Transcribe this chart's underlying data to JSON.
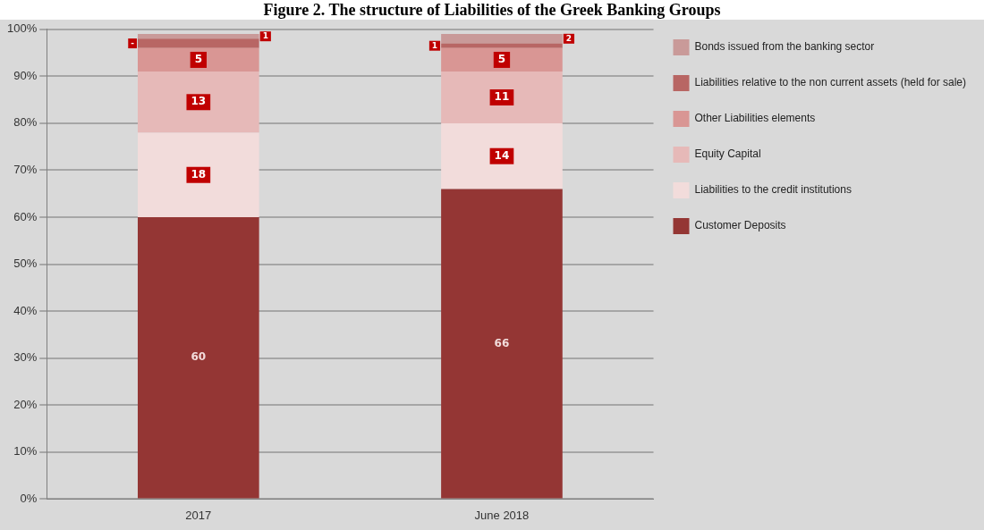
{
  "chart_data": {
    "type": "bar",
    "stacked": true,
    "title": "Figure 2. The structure of Liabilities of the Greek Banking Groups",
    "categories": [
      "2017",
      "June 2018"
    ],
    "series": [
      {
        "name": "Customer Deposits",
        "color": "#943634",
        "values": [
          60,
          66
        ],
        "value_labels": [
          "60",
          "66"
        ]
      },
      {
        "name": "Liabilities to the credit institutions",
        "color": "#f2dcdb",
        "values": [
          18,
          14
        ],
        "value_labels": [
          "18",
          "14"
        ]
      },
      {
        "name": "Equity Capital",
        "color": "#e6b9b8",
        "values": [
          13,
          11
        ],
        "value_labels": [
          "13",
          "11"
        ]
      },
      {
        "name": "Other Liabilities elements",
        "color": "#d99694",
        "values": [
          5,
          5
        ],
        "value_labels": [
          "5",
          "5"
        ]
      },
      {
        "name": "Liabilities relative to the non current assets (held for sale)",
        "color": "#b86664",
        "values": [
          2,
          1
        ],
        "value_labels": [
          "-",
          "1"
        ]
      },
      {
        "name": "Bonds issued from the banking sector",
        "color": "#c99a99",
        "values": [
          1,
          2
        ],
        "value_labels": [
          "1",
          "2"
        ]
      }
    ],
    "ylim": [
      0,
      100
    ],
    "yticks": [
      {
        "value": 0,
        "label": "0%"
      },
      {
        "value": 10,
        "label": "10%"
      },
      {
        "value": 20,
        "label": "20%"
      },
      {
        "value": 30,
        "label": "30%"
      },
      {
        "value": 40,
        "label": "40%"
      },
      {
        "value": 50,
        "label": "50%"
      },
      {
        "value": 60,
        "label": "60%"
      },
      {
        "value": 70,
        "label": "70%"
      },
      {
        "value": 80,
        "label": "80%"
      },
      {
        "value": 90,
        "label": "90%"
      },
      {
        "value": 100,
        "label": "100%"
      }
    ],
    "grid": "y",
    "legend": "right"
  }
}
